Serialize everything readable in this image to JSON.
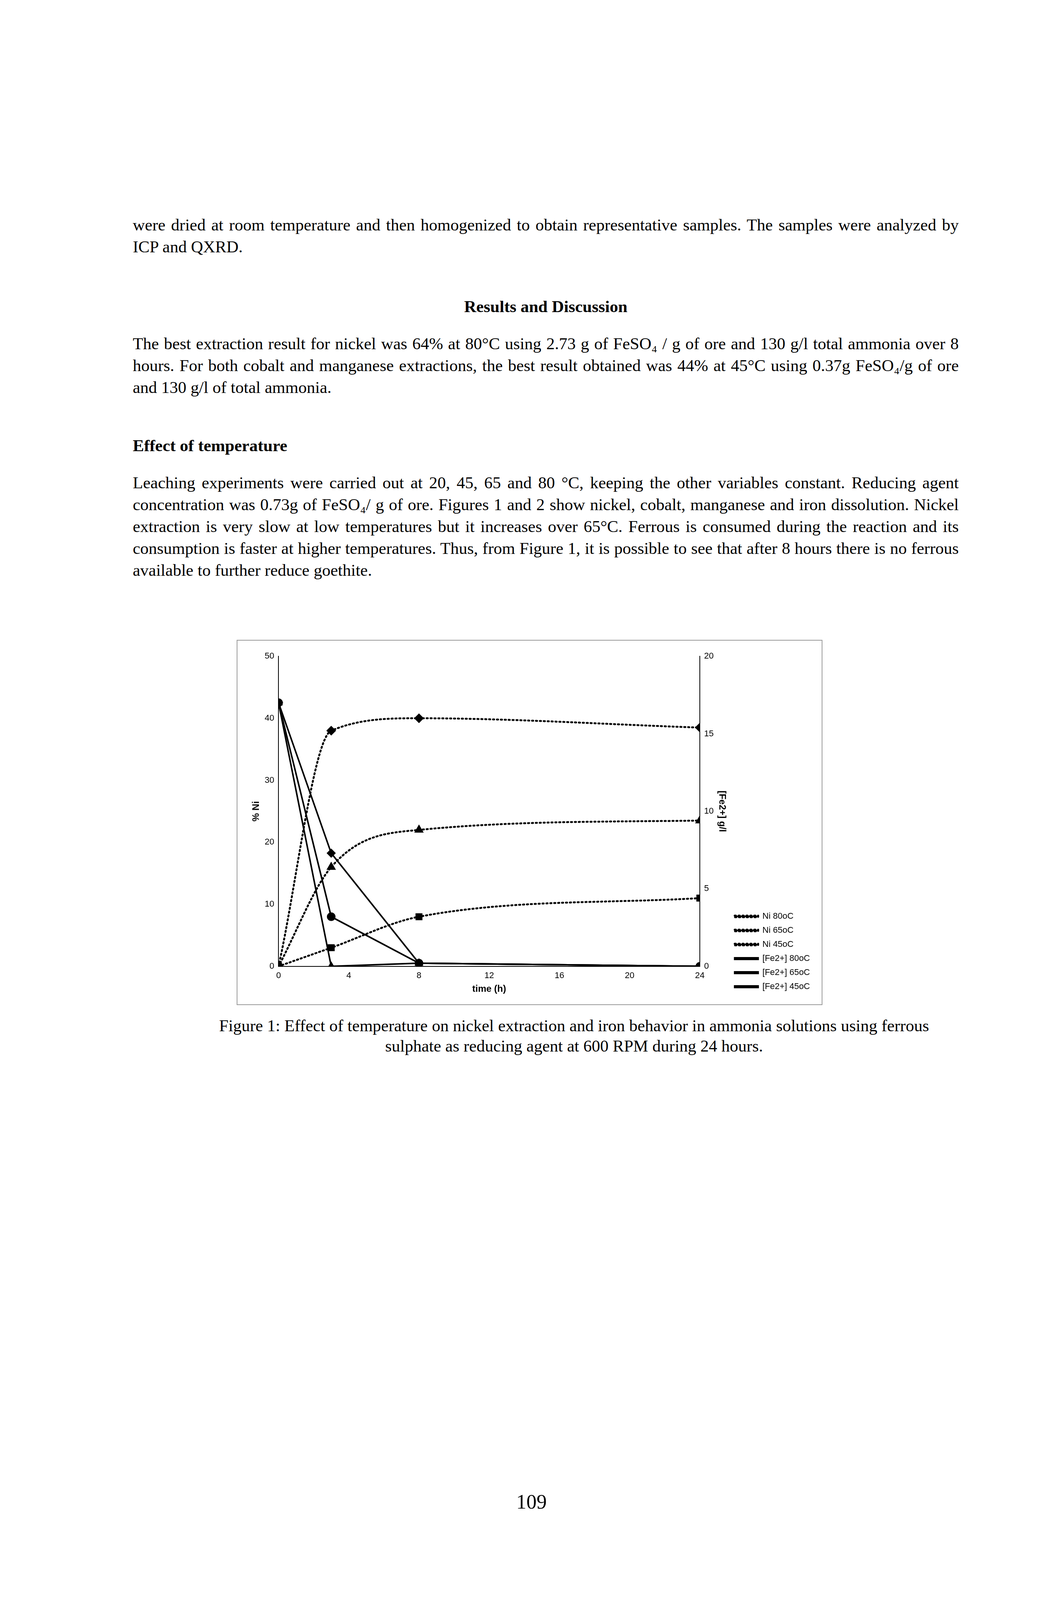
{
  "paragraph_1": "were dried at room temperature and then homogenized to obtain representative samples. The samples were analyzed by ICP and QXRD.",
  "heading_1": "Results and Discussion",
  "paragraph_2": "The best extraction result for nickel was 64% at 80°C using 2.73 g of FeSO₄ / g of ore and 130 g/l total ammonia over 8 hours. For both cobalt and manganese extractions, the best result obtained was 44% at 45°C using 0.37g FeSO₄/g of ore and 130 g/l of total ammonia.",
  "heading_2": "Effect of temperature",
  "paragraph_3": "Leaching experiments were carried out at 20, 45, 65 and 80 °C, keeping the other variables constant. Reducing agent concentration was 0.73g of FeSO₄/ g of ore. Figures 1 and 2 show nickel, cobalt, manganese and iron dissolution. Nickel extraction is very slow at low temperatures but it increases over 65°C.  Ferrous is consumed during the reaction and its consumption is faster at higher temperatures. Thus, from Figure 1, it is possible to see that after 8 hours there is no ferrous available to further reduce goethite.",
  "chart_data": {
    "type": "line",
    "x_label": "time (h)",
    "y_label": "% Ni",
    "y2_label": "[Fe2+] g/l",
    "x": [
      0,
      3,
      8,
      24
    ],
    "xlim": [
      0,
      24
    ],
    "xticks": [
      0,
      4,
      8,
      12,
      16,
      20,
      24
    ],
    "ylim": [
      0,
      50
    ],
    "yticks": [
      0,
      10,
      20,
      30,
      40,
      50
    ],
    "y2lim": [
      0,
      20
    ],
    "y2ticks": [
      0,
      5,
      10,
      15,
      20
    ],
    "grid": false,
    "legend": "right",
    "series": [
      {
        "name": "Ni 80oC",
        "color": "#000000",
        "marker": "diamond",
        "line_style": "dotted",
        "values": [
          0,
          38,
          40,
          38.5
        ]
      },
      {
        "name": "Ni 65oC",
        "color": "#000000",
        "marker": "triangle",
        "line_style": "dotted",
        "values": [
          0,
          16,
          22,
          23.5
        ]
      },
      {
        "name": "Ni 45oC",
        "color": "#000000",
        "marker": "square",
        "line_style": "dotted",
        "values": [
          0,
          3,
          8,
          11
        ]
      },
      {
        "name": "[Fe2+] 80oC",
        "color": "#000000",
        "marker": "triangle",
        "line_style": "solid",
        "axis": "y2",
        "values": [
          17,
          0,
          0.2,
          0
        ]
      },
      {
        "name": "[Fe2+] 65oC",
        "color": "#000000",
        "marker": "diamond",
        "line_style": "solid",
        "axis": "y2",
        "values": [
          17,
          7.3,
          0.2,
          0
        ]
      },
      {
        "name": "[Fe2+] 45oC",
        "color": "#000000",
        "marker": "circle",
        "line_style": "solid",
        "axis": "y2",
        "values": [
          17,
          3.2,
          0.2,
          0
        ]
      }
    ]
  },
  "caption": "Figure 1: Effect of temperature on nickel extraction and iron behavior in ammonia solutions using ferrous sulphate as reducing agent at 600 RPM during 24 hours.",
  "page_number": "109"
}
